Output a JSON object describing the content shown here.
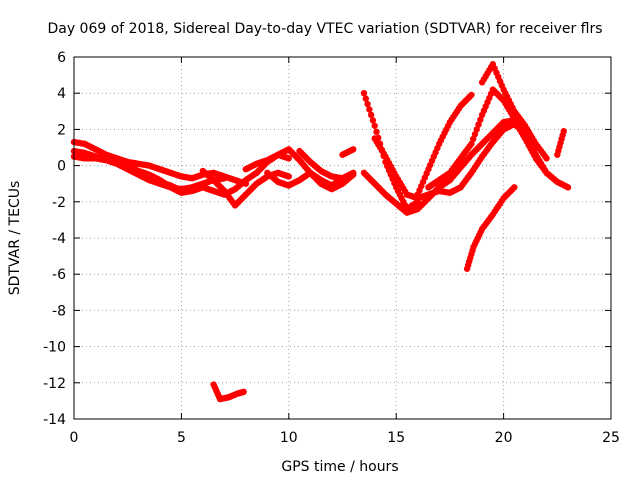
{
  "chart_data": {
    "type": "scatter",
    "title": "Day 069 of 2018, Sidereal Day-to-day VTEC variation (SDTVAR) for receiver flrs",
    "xlabel": "GPS time / hours",
    "ylabel": "SDTVAR / TECUs",
    "xlim": [
      0,
      25
    ],
    "ylim": [
      -14,
      6
    ],
    "xticks": [
      0,
      5,
      10,
      15,
      20,
      25
    ],
    "yticks": [
      -14,
      -12,
      -10,
      -8,
      -6,
      -4,
      -2,
      0,
      2,
      4,
      6
    ],
    "grid": true,
    "legend": "none",
    "color": "#ff0000",
    "series": [
      {
        "x": [
          0,
          0.5,
          1,
          1.5,
          2,
          2.5,
          3,
          3.5,
          4,
          4.5,
          5,
          5.5,
          6,
          6.5,
          7,
          7.5,
          8
        ],
        "values": [
          1.3,
          1.2,
          0.9,
          0.6,
          0.4,
          0.2,
          0.1,
          0.0,
          -0.2,
          -0.4,
          -0.6,
          -0.7,
          -0.5,
          -0.4,
          -0.6,
          -0.8,
          -1.0
        ]
      },
      {
        "x": [
          0,
          0.5,
          1,
          1.5,
          2,
          2.5,
          3,
          3.5,
          4,
          4.5,
          5,
          5.5,
          6,
          6.5,
          7
        ],
        "values": [
          0.8,
          0.7,
          0.5,
          0.3,
          0.1,
          -0.2,
          -0.5,
          -0.8,
          -1.0,
          -1.2,
          -1.3,
          -1.2,
          -1.0,
          -0.8,
          -0.7
        ]
      },
      {
        "x": [
          0,
          0.5,
          1,
          1.5,
          2,
          2.5,
          3,
          3.5,
          4,
          4.5,
          5,
          5.5,
          6
        ],
        "values": [
          0.5,
          0.4,
          0.4,
          0.3,
          0.2,
          0.0,
          -0.3,
          -0.6,
          -0.9,
          -1.1,
          -1.4,
          -1.2,
          -1.0
        ]
      },
      {
        "x": [
          3,
          3.5,
          4,
          4.5,
          5,
          5.5,
          6,
          6.5,
          7,
          7.5,
          8,
          8.5,
          9,
          9.5,
          10
        ],
        "values": [
          -0.3,
          -0.5,
          -0.8,
          -1.2,
          -1.5,
          -1.4,
          -1.2,
          -1.4,
          -1.6,
          -1.3,
          -0.8,
          -0.4,
          0.2,
          0.6,
          0.4
        ]
      },
      {
        "x": [
          6,
          6.5,
          7,
          7.5,
          8,
          8.5,
          9,
          9.5,
          10
        ],
        "values": [
          -0.3,
          -0.8,
          -1.4,
          -2.2,
          -1.6,
          -1.0,
          -0.6,
          -0.4,
          -0.6
        ]
      },
      {
        "x": [
          8,
          8.5,
          9,
          9.5,
          10,
          10.5,
          11,
          11.5,
          12,
          12.5,
          13
        ],
        "values": [
          -0.2,
          0.1,
          0.3,
          0.6,
          0.9,
          0.3,
          -0.4,
          -1.0,
          -1.3,
          -1.0,
          -0.5
        ]
      },
      {
        "x": [
          9,
          9.5,
          10,
          10.5,
          11,
          11.5,
          12,
          12.5,
          13
        ],
        "values": [
          -0.4,
          -0.9,
          -1.1,
          -0.8,
          -0.4,
          -0.8,
          -1.1,
          -0.7,
          -0.4
        ]
      },
      {
        "x": [
          10.5,
          11,
          11.5,
          12,
          12.5
        ],
        "values": [
          0.8,
          0.2,
          -0.3,
          -0.6,
          -0.7
        ]
      },
      {
        "x": [
          12.5,
          13
        ],
        "values": [
          0.6,
          0.9
        ]
      },
      {
        "x": [
          13.5,
          14,
          14.5,
          15,
          15.5,
          16
        ],
        "values": [
          4.0,
          2.2,
          0.2,
          -1.2,
          -2.4,
          -2.0
        ]
      },
      {
        "x": [
          13.5,
          14,
          14.5,
          15,
          15.5,
          16,
          16.5,
          17,
          17.5,
          18,
          18.5,
          19,
          19.5,
          20,
          20.5,
          21,
          21.5,
          22,
          22.5,
          23
        ],
        "values": [
          -0.4,
          -1.0,
          -1.6,
          -2.1,
          -2.6,
          -2.4,
          -1.8,
          -1.2,
          -0.8,
          -0.1,
          0.6,
          1.2,
          1.8,
          2.4,
          2.5,
          1.5,
          0.4,
          -0.4,
          -0.9,
          -1.2
        ]
      },
      {
        "x": [
          14,
          14.5,
          15,
          15.5,
          16,
          16.5,
          17,
          17.5,
          18,
          18.5,
          19,
          19.5,
          20,
          20.5,
          21
        ],
        "values": [
          1.5,
          0.5,
          -0.6,
          -1.6,
          -1.8,
          -1.6,
          -1.4,
          -1.5,
          -1.2,
          -0.4,
          0.5,
          1.3,
          2.0,
          2.3,
          1.8
        ]
      },
      {
        "x": [
          16,
          16.5,
          17,
          17.5,
          18,
          18.5
        ],
        "values": [
          -1.6,
          -0.2,
          1.2,
          2.4,
          3.3,
          3.9
        ]
      },
      {
        "x": [
          16.5,
          17,
          17.5,
          18,
          18.5,
          19,
          19.5,
          20,
          20.5,
          21,
          21.5,
          22
        ],
        "values": [
          -1.2,
          -0.8,
          -0.4,
          0.4,
          1.2,
          2.8,
          4.2,
          3.6,
          2.6,
          1.8,
          0.6,
          -0.4
        ]
      },
      {
        "x": [
          19,
          19.5,
          20,
          20.5,
          21,
          21.5,
          22
        ],
        "values": [
          4.6,
          5.6,
          4.2,
          3.0,
          2.2,
          1.2,
          0.4
        ]
      },
      {
        "x": [
          18.3,
          18.6,
          19,
          19.5,
          20,
          20.5
        ],
        "values": [
          -5.7,
          -4.5,
          -3.5,
          -2.7,
          -1.8,
          -1.2
        ]
      },
      {
        "x": [
          22.5,
          22.8
        ],
        "values": [
          0.6,
          1.9
        ]
      },
      {
        "x": [
          6.5,
          6.8,
          7.2,
          7.6,
          7.9
        ],
        "values": [
          -12.1,
          -12.9,
          -12.8,
          -12.6,
          -12.5
        ]
      }
    ]
  }
}
